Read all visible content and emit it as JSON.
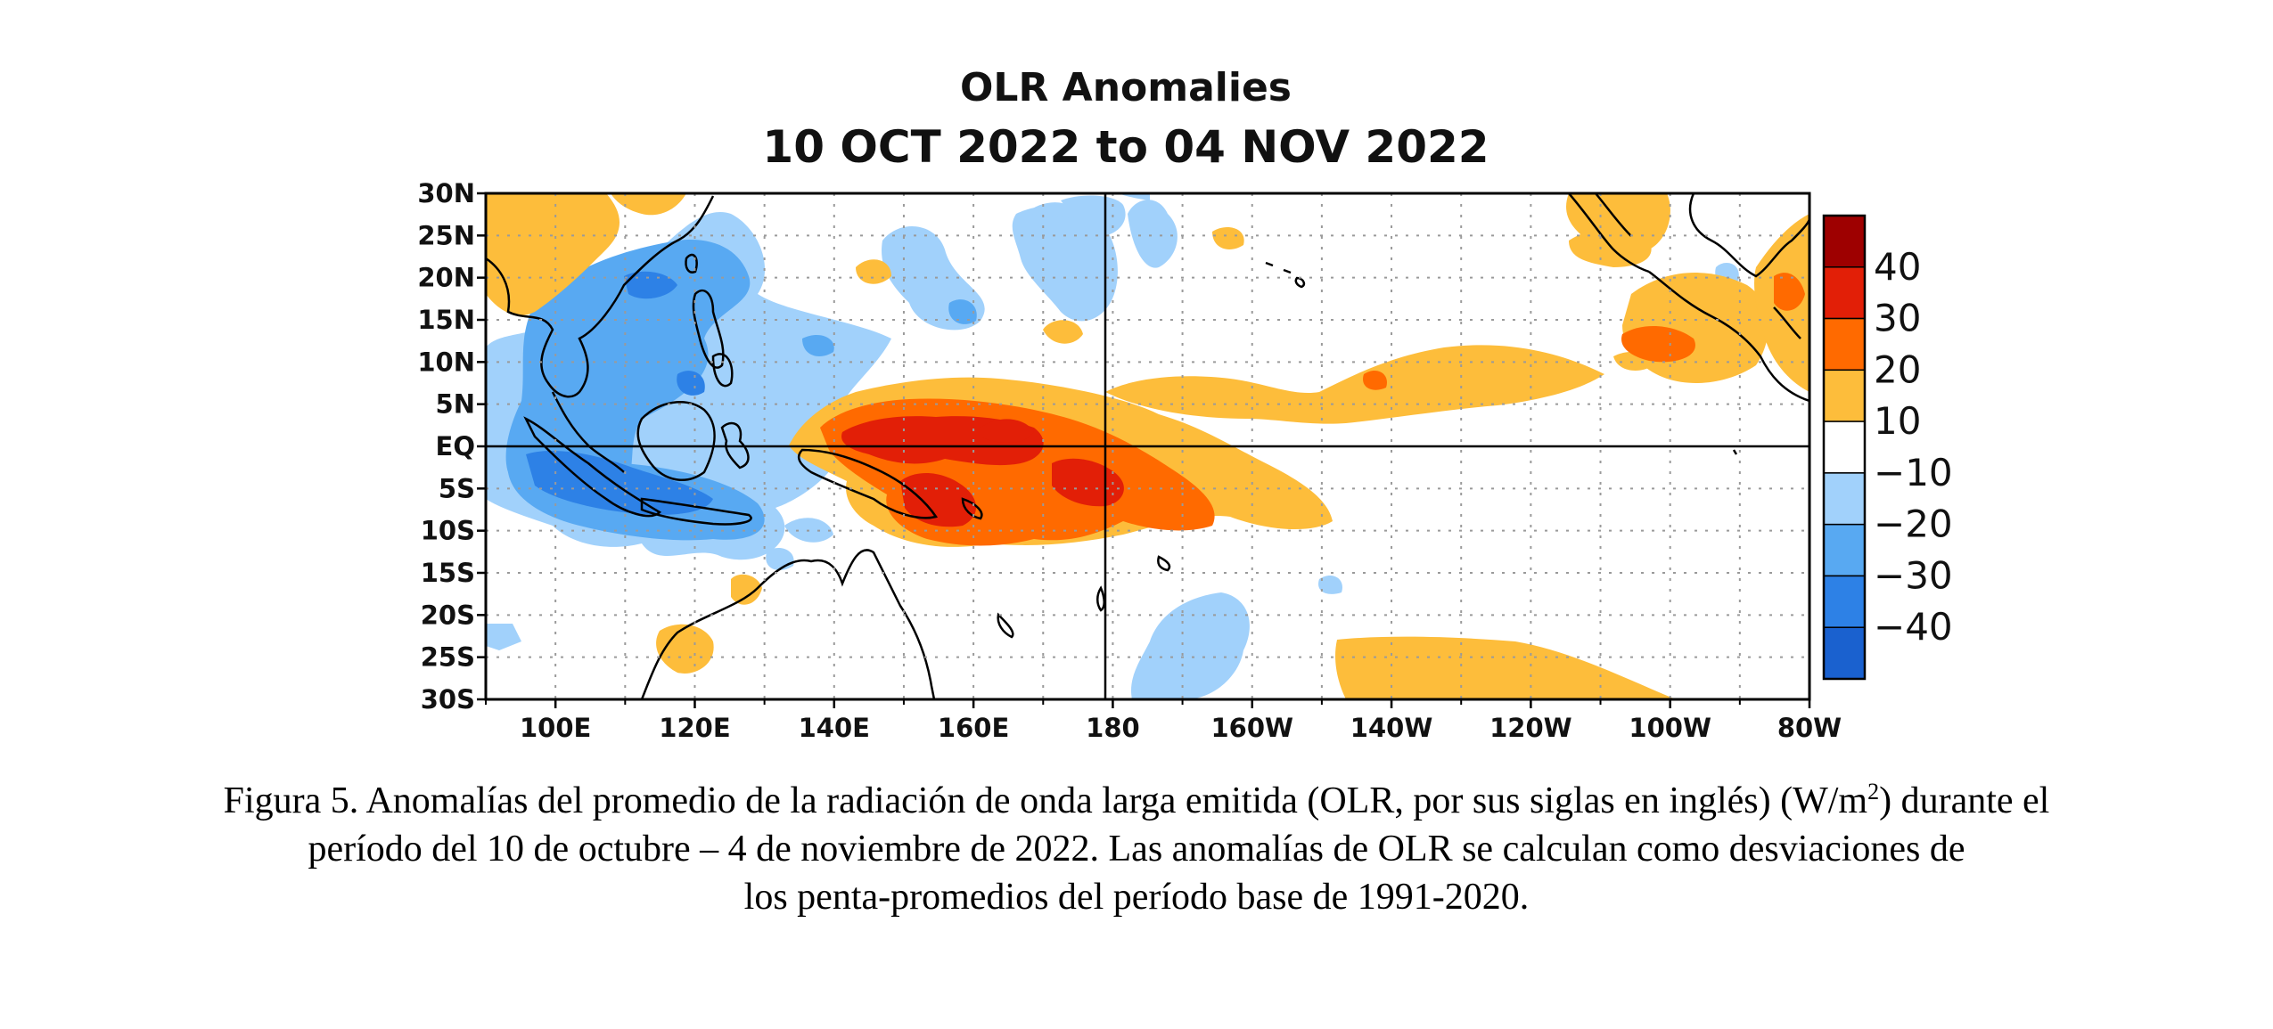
{
  "title": {
    "line1": "OLR Anomalies",
    "line2": "10 OCT 2022 to 04 NOV 2022"
  },
  "map": {
    "lat_labels": [
      "30N",
      "25N",
      "20N",
      "15N",
      "10N",
      "5N",
      "EQ",
      "5S",
      "10S",
      "15S",
      "20S",
      "25S",
      "30S"
    ],
    "lon_labels": [
      "100E",
      "120E",
      "140E",
      "160E",
      "180",
      "160W",
      "140W",
      "120W",
      "100W",
      "80W"
    ],
    "lon_range": [
      90,
      280
    ],
    "lat_range": [
      -30,
      30
    ],
    "grid": "dotted",
    "reference_lines": [
      "EQ",
      "180"
    ]
  },
  "colorbar": {
    "labels": [
      "40",
      "30",
      "20",
      "10",
      "−10",
      "−20",
      "−30",
      "−40"
    ],
    "levels": [
      ">40",
      "30 to 40",
      "20 to 30",
      "10 to 20",
      "−10 to 10",
      "−20 to −10",
      "−30 to −20",
      "−40 to −30",
      "<−40"
    ],
    "colors": [
      "#9e0000",
      "#e21f07",
      "#ff6a00",
      "#fdbd3b",
      "#ffffff",
      "#a1d1fb",
      "#58a9f2",
      "#2d81e6",
      "#1a61cf"
    ]
  },
  "caption": {
    "line1": "Figura 5. Anomalías del promedio de la radiación de onda larga emitida (OLR, por sus siglas en inglés) (W/m",
    "superscript": "2",
    "line1_end": ") durante el",
    "line2": "período del 10 de octubre – 4 de noviembre de 2022.  Las anomalías de OLR se calculan como desviaciones de",
    "line3": "los penta-promedios del período base de 1991-2020."
  }
}
